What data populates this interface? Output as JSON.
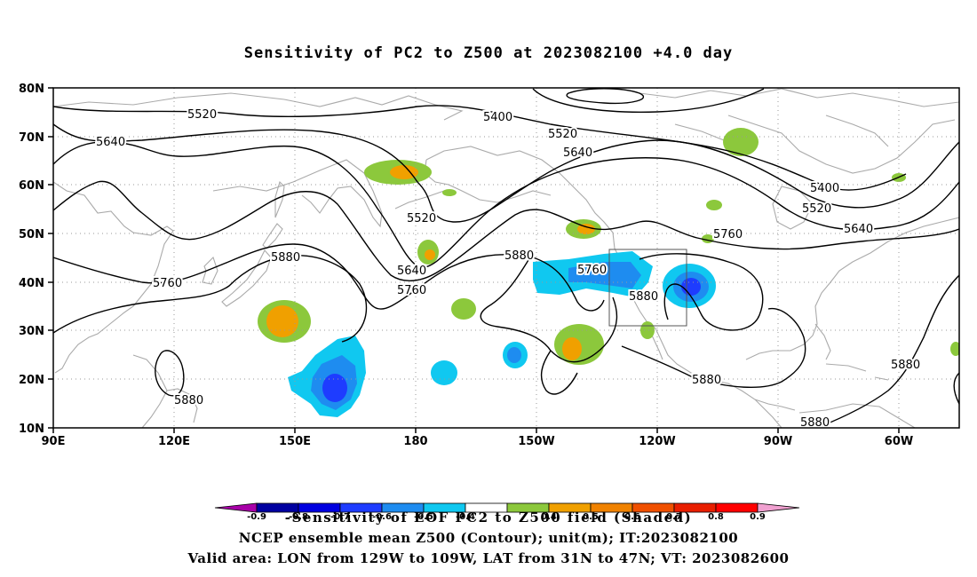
{
  "title": "Sensitivity of PC2 to Z500 at 2023082100 +4.0 day",
  "map": {
    "projection": "lat-lon cylindrical",
    "lon_range": [
      "90E",
      "60W"
    ],
    "lat_range": [
      "10N",
      "80N"
    ],
    "x_ticks": [
      "90E",
      "120E",
      "150E",
      "180",
      "150W",
      "120W",
      "90W",
      "60W"
    ],
    "y_ticks": [
      "10N",
      "20N",
      "30N",
      "40N",
      "50N",
      "60N",
      "70N",
      "80N"
    ],
    "grid": "dotted",
    "coastline_color": "#aaaaaa",
    "contour_color": "#000000",
    "contour_labels": [
      "5520",
      "5400",
      "5520",
      "5640",
      "5640",
      "5400",
      "5520",
      "5640",
      "5760",
      "5880",
      "5880",
      "5760",
      "5640",
      "5760",
      "5520",
      "5760",
      "5880",
      "5880",
      "5880",
      "5880",
      "5880"
    ],
    "valid_box": "LON from 129W to 109W, LAT from 31N to 47N"
  },
  "colorbar": {
    "colors": [
      "#a800a8",
      "#0000a0",
      "#0000e0",
      "#1e3cff",
      "#1e8cf0",
      "#10c8f0",
      "#ffffff",
      "#8cc83c",
      "#f0a000",
      "#f08200",
      "#f05000",
      "#e81e00",
      "#ff0000",
      "#f0a0d0"
    ],
    "tick_labels": [
      "-0.9",
      "-0.8",
      "-0.7",
      "-0.6",
      "-0.5",
      "-0.4",
      "0.4",
      "0.5",
      "0.6",
      "0.7",
      "0.8",
      "0.9"
    ]
  },
  "captions": {
    "line1": "-Sensitivity of EOF PC2 to Z500 field (Shaded)",
    "line2": "NCEP ensemble mean Z500 (Contour); unit(m); IT:2023082100",
    "line3": "Valid area: LON from 129W to 109W, LAT from 31N to 47N; VT: 2023082600"
  }
}
